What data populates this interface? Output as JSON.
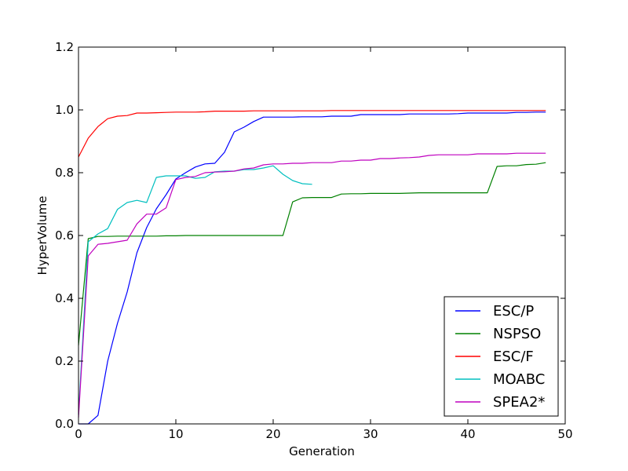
{
  "chart_data": {
    "type": "line",
    "xlabel": "Generation",
    "ylabel": "HyperVolume",
    "xlim": [
      0,
      50
    ],
    "ylim": [
      0,
      1.2
    ],
    "xticks": [
      "0",
      "10",
      "20",
      "30",
      "40",
      "50"
    ],
    "yticks": [
      "0.0",
      "0.2",
      "0.4",
      "0.6",
      "0.8",
      "1.0",
      "1.2"
    ],
    "grid": false,
    "legend_position": "lower-right",
    "series": [
      {
        "name": "ESC/P",
        "color": "#0000ff",
        "x": [
          0,
          1,
          2,
          3,
          4,
          5,
          6,
          7,
          8,
          9,
          10,
          11,
          12,
          13,
          14,
          15,
          16,
          17,
          18,
          19,
          20,
          21,
          22,
          23,
          24,
          25,
          26,
          27,
          28,
          29,
          30,
          31,
          32,
          33,
          34,
          35,
          36,
          37,
          38,
          39,
          40,
          41,
          42,
          43,
          44,
          45,
          46,
          47,
          48
        ],
        "y": [
          0.0,
          0.0,
          0.027,
          0.2,
          0.32,
          0.42,
          0.545,
          0.625,
          0.685,
          0.73,
          0.78,
          0.8,
          0.818,
          0.828,
          0.83,
          0.865,
          0.93,
          0.945,
          0.963,
          0.977,
          0.977,
          0.977,
          0.977,
          0.978,
          0.978,
          0.978,
          0.98,
          0.98,
          0.98,
          0.985,
          0.985,
          0.985,
          0.985,
          0.985,
          0.987,
          0.987,
          0.987,
          0.987,
          0.987,
          0.988,
          0.99,
          0.99,
          0.99,
          0.99,
          0.99,
          0.992,
          0.992,
          0.993,
          0.993
        ]
      },
      {
        "name": "NSPSO",
        "color": "#008000",
        "x": [
          0,
          1,
          2,
          3,
          4,
          5,
          6,
          7,
          8,
          9,
          10,
          11,
          12,
          13,
          14,
          15,
          16,
          17,
          18,
          19,
          20,
          21,
          22,
          23,
          24,
          25,
          26,
          27,
          28,
          29,
          30,
          31,
          32,
          33,
          34,
          35,
          36,
          37,
          38,
          39,
          40,
          41,
          42,
          43,
          44,
          45,
          46,
          47,
          48
        ],
        "y": [
          0.25,
          0.59,
          0.597,
          0.597,
          0.598,
          0.598,
          0.598,
          0.598,
          0.598,
          0.599,
          0.599,
          0.6,
          0.6,
          0.6,
          0.6,
          0.6,
          0.6,
          0.6,
          0.6,
          0.6,
          0.6,
          0.6,
          0.707,
          0.72,
          0.721,
          0.721,
          0.721,
          0.732,
          0.733,
          0.733,
          0.734,
          0.734,
          0.734,
          0.734,
          0.735,
          0.736,
          0.736,
          0.736,
          0.736,
          0.736,
          0.736,
          0.736,
          0.736,
          0.82,
          0.822,
          0.822,
          0.826,
          0.827,
          0.832
        ]
      },
      {
        "name": "ESC/F",
        "color": "#ff0000",
        "x": [
          0,
          1,
          2,
          3,
          4,
          5,
          6,
          7,
          8,
          9,
          10,
          11,
          12,
          13,
          14,
          15,
          16,
          17,
          18,
          19,
          20,
          21,
          22,
          23,
          24,
          25,
          26,
          27,
          28,
          29,
          30,
          31,
          32,
          33,
          34,
          35,
          36,
          37,
          38,
          39,
          40,
          41,
          42,
          43,
          44,
          45,
          46,
          47,
          48
        ],
        "y": [
          0.85,
          0.91,
          0.947,
          0.972,
          0.98,
          0.982,
          0.99,
          0.99,
          0.991,
          0.992,
          0.993,
          0.993,
          0.993,
          0.994,
          0.996,
          0.996,
          0.996,
          0.996,
          0.997,
          0.997,
          0.997,
          0.997,
          0.997,
          0.997,
          0.997,
          0.997,
          0.998,
          0.998,
          0.998,
          0.998,
          0.998,
          0.998,
          0.998,
          0.998,
          0.998,
          0.998,
          0.998,
          0.998,
          0.998,
          0.998,
          0.998,
          0.998,
          0.998,
          0.998,
          0.998,
          0.998,
          0.998,
          0.998,
          0.998
        ]
      },
      {
        "name": "MOABC",
        "color": "#00bfbf",
        "x": [
          0,
          1,
          2,
          3,
          4,
          5,
          6,
          7,
          8,
          9,
          10,
          11,
          12,
          13,
          14,
          15,
          16,
          17,
          18,
          19,
          20,
          21,
          22,
          23,
          24
        ],
        "y": [
          0.03,
          0.58,
          0.605,
          0.622,
          0.683,
          0.705,
          0.712,
          0.705,
          0.785,
          0.79,
          0.79,
          0.79,
          0.782,
          0.785,
          0.803,
          0.805,
          0.805,
          0.81,
          0.81,
          0.815,
          0.822,
          0.795,
          0.775,
          0.765,
          0.763
        ]
      },
      {
        "name": "SPEA2*",
        "color": "#bf00bf",
        "x": [
          0,
          1,
          2,
          3,
          4,
          5,
          6,
          7,
          8,
          9,
          10,
          11,
          12,
          13,
          14,
          15,
          16,
          17,
          18,
          19,
          20,
          21,
          22,
          23,
          24,
          25,
          26,
          27,
          28,
          29,
          30,
          31,
          32,
          33,
          34,
          35,
          36,
          37,
          38,
          39,
          40,
          41,
          42,
          43,
          44,
          45,
          46,
          47,
          48
        ],
        "y": [
          0.02,
          0.535,
          0.572,
          0.575,
          0.58,
          0.585,
          0.637,
          0.668,
          0.668,
          0.688,
          0.778,
          0.785,
          0.788,
          0.8,
          0.802,
          0.803,
          0.805,
          0.812,
          0.815,
          0.825,
          0.828,
          0.828,
          0.83,
          0.83,
          0.832,
          0.832,
          0.832,
          0.837,
          0.837,
          0.84,
          0.84,
          0.845,
          0.845,
          0.847,
          0.848,
          0.85,
          0.855,
          0.857,
          0.857,
          0.857,
          0.857,
          0.86,
          0.86,
          0.86,
          0.86,
          0.862,
          0.862,
          0.862,
          0.862
        ]
      }
    ]
  }
}
